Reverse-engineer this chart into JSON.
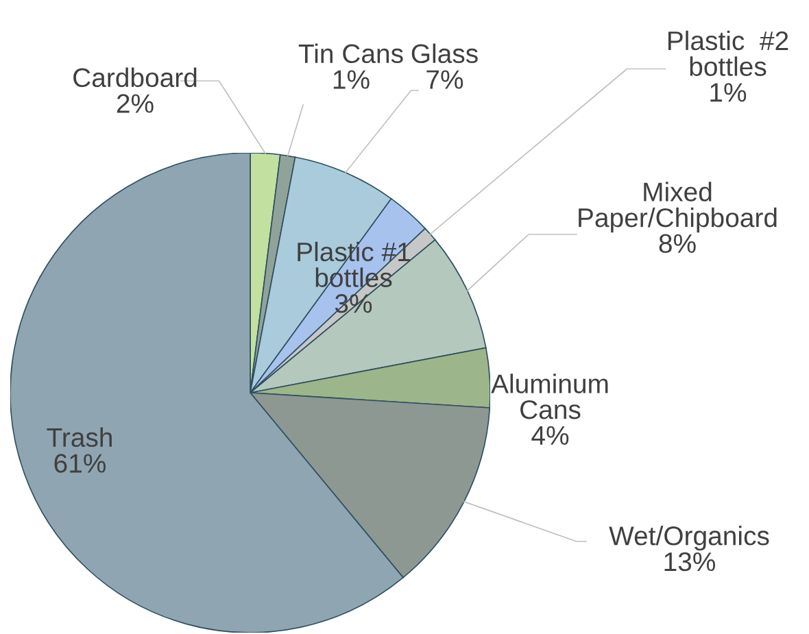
{
  "chart_data": {
    "type": "pie",
    "categories": [
      "Cardboard",
      "Tin Cans",
      "Glass",
      "Plastic #1\nbottles",
      "Plastic  #2\nbottles",
      "Mixed\nPaper/Chipboard",
      "Aluminum\nCans",
      "Wet/Organics",
      "Trash"
    ],
    "values": [
      2,
      1,
      7,
      3,
      1,
      8,
      4,
      13,
      61
    ],
    "colors": [
      "#c2e0a0",
      "#8fa39a",
      "#a9cbdc",
      "#a8c2ee",
      "#c6c8c8",
      "#b5c8be",
      "#9db58a",
      "#8d9893",
      "#8fa5b2"
    ],
    "value_labels": [
      "2%",
      "1%",
      "7%",
      "3%",
      "1%",
      "8%",
      "4%",
      "13%",
      "61%"
    ],
    "legend": false
  }
}
